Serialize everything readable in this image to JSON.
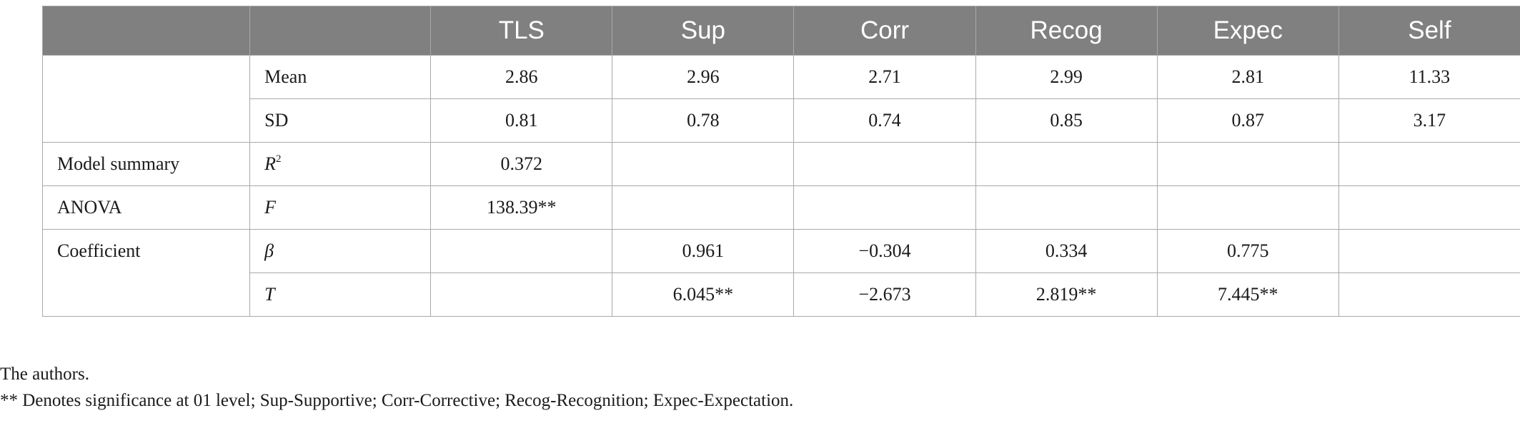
{
  "table": {
    "header": [
      "",
      "",
      "TLS",
      "Sup",
      "Corr",
      "Recog",
      "Expec",
      "Self"
    ],
    "rows": [
      {
        "group": "",
        "stat": "Mean",
        "sup": "",
        "values": [
          "2.86",
          "2.96",
          "2.71",
          "2.99",
          "2.81",
          "11.33"
        ]
      },
      {
        "group": "",
        "stat": "SD",
        "sup": "",
        "values": [
          "0.81",
          "0.78",
          "0.74",
          "0.85",
          "0.87",
          "3.17"
        ]
      },
      {
        "group": "Model summary",
        "stat": "R",
        "sup": "2",
        "values": [
          "0.372",
          "",
          "",
          "",
          "",
          ""
        ]
      },
      {
        "group": "ANOVA",
        "stat": "F",
        "sup": "",
        "values": [
          "138.39**",
          "",
          "",
          "",
          "",
          ""
        ]
      },
      {
        "group": "Coefficient",
        "stat": "β",
        "sup": "",
        "values": [
          "",
          "0.961",
          "−0.304",
          "0.334",
          "0.775",
          ""
        ]
      },
      {
        "group": "",
        "stat": "T",
        "sup": "",
        "values": [
          "",
          "6.045**",
          "−2.673",
          "2.819**",
          "7.445**",
          ""
        ]
      }
    ]
  },
  "notes": {
    "source": "The authors.",
    "significance": "** Denotes significance at 01 level; Sup-Supportive; Corr-Corrective; Recog-Recognition; Expec-Expectation."
  }
}
